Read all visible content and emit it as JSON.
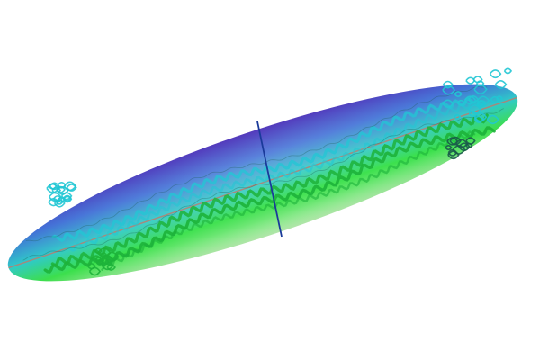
{
  "scene": {
    "subject": "ellipsoid",
    "background_color": "#ffffff",
    "gradient_colors": [
      "#4a2fb8",
      "#3f6fd6",
      "#2fc9c9",
      "#39e04a",
      "#b8f0b0"
    ],
    "major_axis_color": "#c07a6a",
    "minor_axis_color": "#1a3a9a",
    "cyan_structure_color": "#21c7d4",
    "green_structure_color": "#1db33a",
    "dark_structure_color": "#1a5a4a"
  }
}
